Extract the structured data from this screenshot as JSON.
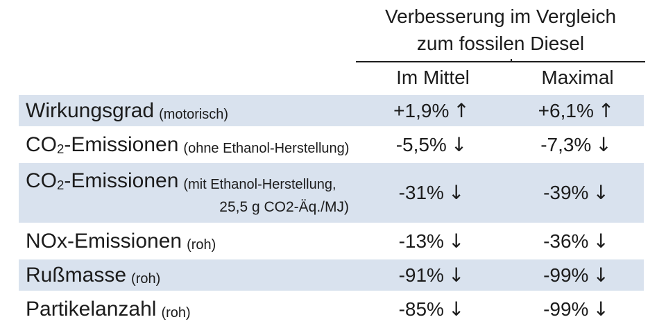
{
  "header": {
    "title_line1": "Verbesserung im Vergleich",
    "title_line2": "zum fossilen Diesel",
    "col_mean": "Im Mittel",
    "col_max": "Maximal"
  },
  "icons": {
    "up": "↑",
    "down": "↓"
  },
  "colors": {
    "row_shaded": "#d9e2ee",
    "text": "#1c1c1c",
    "rule": "#1c1c1c"
  },
  "rows": [
    {
      "shaded": true,
      "label_parts": [
        {
          "text": "Wirkungsgrad",
          "sub": false
        }
      ],
      "note": "(motorisch)",
      "note_line2": "",
      "mean": {
        "value": "+1,9%",
        "direction": "up"
      },
      "max": {
        "value": "+6,1%",
        "direction": "up"
      }
    },
    {
      "shaded": false,
      "label_parts": [
        {
          "text": "CO",
          "sub": false
        },
        {
          "text": "2",
          "sub": true
        },
        {
          "text": "-Emissionen",
          "sub": false
        }
      ],
      "note": "(ohne Ethanol-Herstellung)",
      "note_line2": "",
      "mean": {
        "value": "-5,5%",
        "direction": "down"
      },
      "max": {
        "value": "-7,3%",
        "direction": "down"
      }
    },
    {
      "shaded": true,
      "label_parts": [
        {
          "text": "CO",
          "sub": false
        },
        {
          "text": "2",
          "sub": true
        },
        {
          "text": "-Emissionen",
          "sub": false
        }
      ],
      "note": "(mit Ethanol-Herstellung,",
      "note_line2": "25,5 g CO2-Äq./MJ)",
      "mean": {
        "value": "-31%",
        "direction": "down"
      },
      "max": {
        "value": "-39%",
        "direction": "down"
      }
    },
    {
      "shaded": false,
      "label_parts": [
        {
          "text": "NOx-Emissionen",
          "sub": false
        }
      ],
      "note": "(roh)",
      "note_line2": "",
      "mean": {
        "value": "-13%",
        "direction": "down"
      },
      "max": {
        "value": "-36%",
        "direction": "down"
      }
    },
    {
      "shaded": true,
      "label_parts": [
        {
          "text": "Rußmasse",
          "sub": false
        }
      ],
      "note": "(roh)",
      "note_line2": "",
      "mean": {
        "value": "-91%",
        "direction": "down"
      },
      "max": {
        "value": "-99%",
        "direction": "down"
      }
    },
    {
      "shaded": false,
      "label_parts": [
        {
          "text": "Partikelanzahl",
          "sub": false
        }
      ],
      "note": "(roh)",
      "note_line2": "",
      "mean": {
        "value": "-85%",
        "direction": "down"
      },
      "max": {
        "value": "-99%",
        "direction": "down"
      }
    }
  ],
  "chart_data": {
    "type": "table",
    "title": "Verbesserung im Vergleich zum fossilen Diesel",
    "columns": [
      "Im Mittel",
      "Maximal"
    ],
    "rows": [
      {
        "metric": "Wirkungsgrad (motorisch)",
        "im_mittel": "+1,9%",
        "maximal": "+6,1%",
        "trend": "up"
      },
      {
        "metric": "CO2-Emissionen (ohne Ethanol-Herstellung)",
        "im_mittel": "-5,5%",
        "maximal": "-7,3%",
        "trend": "down"
      },
      {
        "metric": "CO2-Emissionen (mit Ethanol-Herstellung, 25,5 g CO2-Äq./MJ)",
        "im_mittel": "-31%",
        "maximal": "-39%",
        "trend": "down"
      },
      {
        "metric": "NOx-Emissionen (roh)",
        "im_mittel": "-13%",
        "maximal": "-36%",
        "trend": "down"
      },
      {
        "metric": "Rußmasse (roh)",
        "im_mittel": "-91%",
        "maximal": "-99%",
        "trend": "down"
      },
      {
        "metric": "Partikelanzahl (roh)",
        "im_mittel": "-85%",
        "maximal": "-99%",
        "trend": "down"
      }
    ],
    "layout": {
      "shaded_row_color": "#d9e2ee",
      "alternating_rows": true,
      "header_rule": true
    }
  }
}
